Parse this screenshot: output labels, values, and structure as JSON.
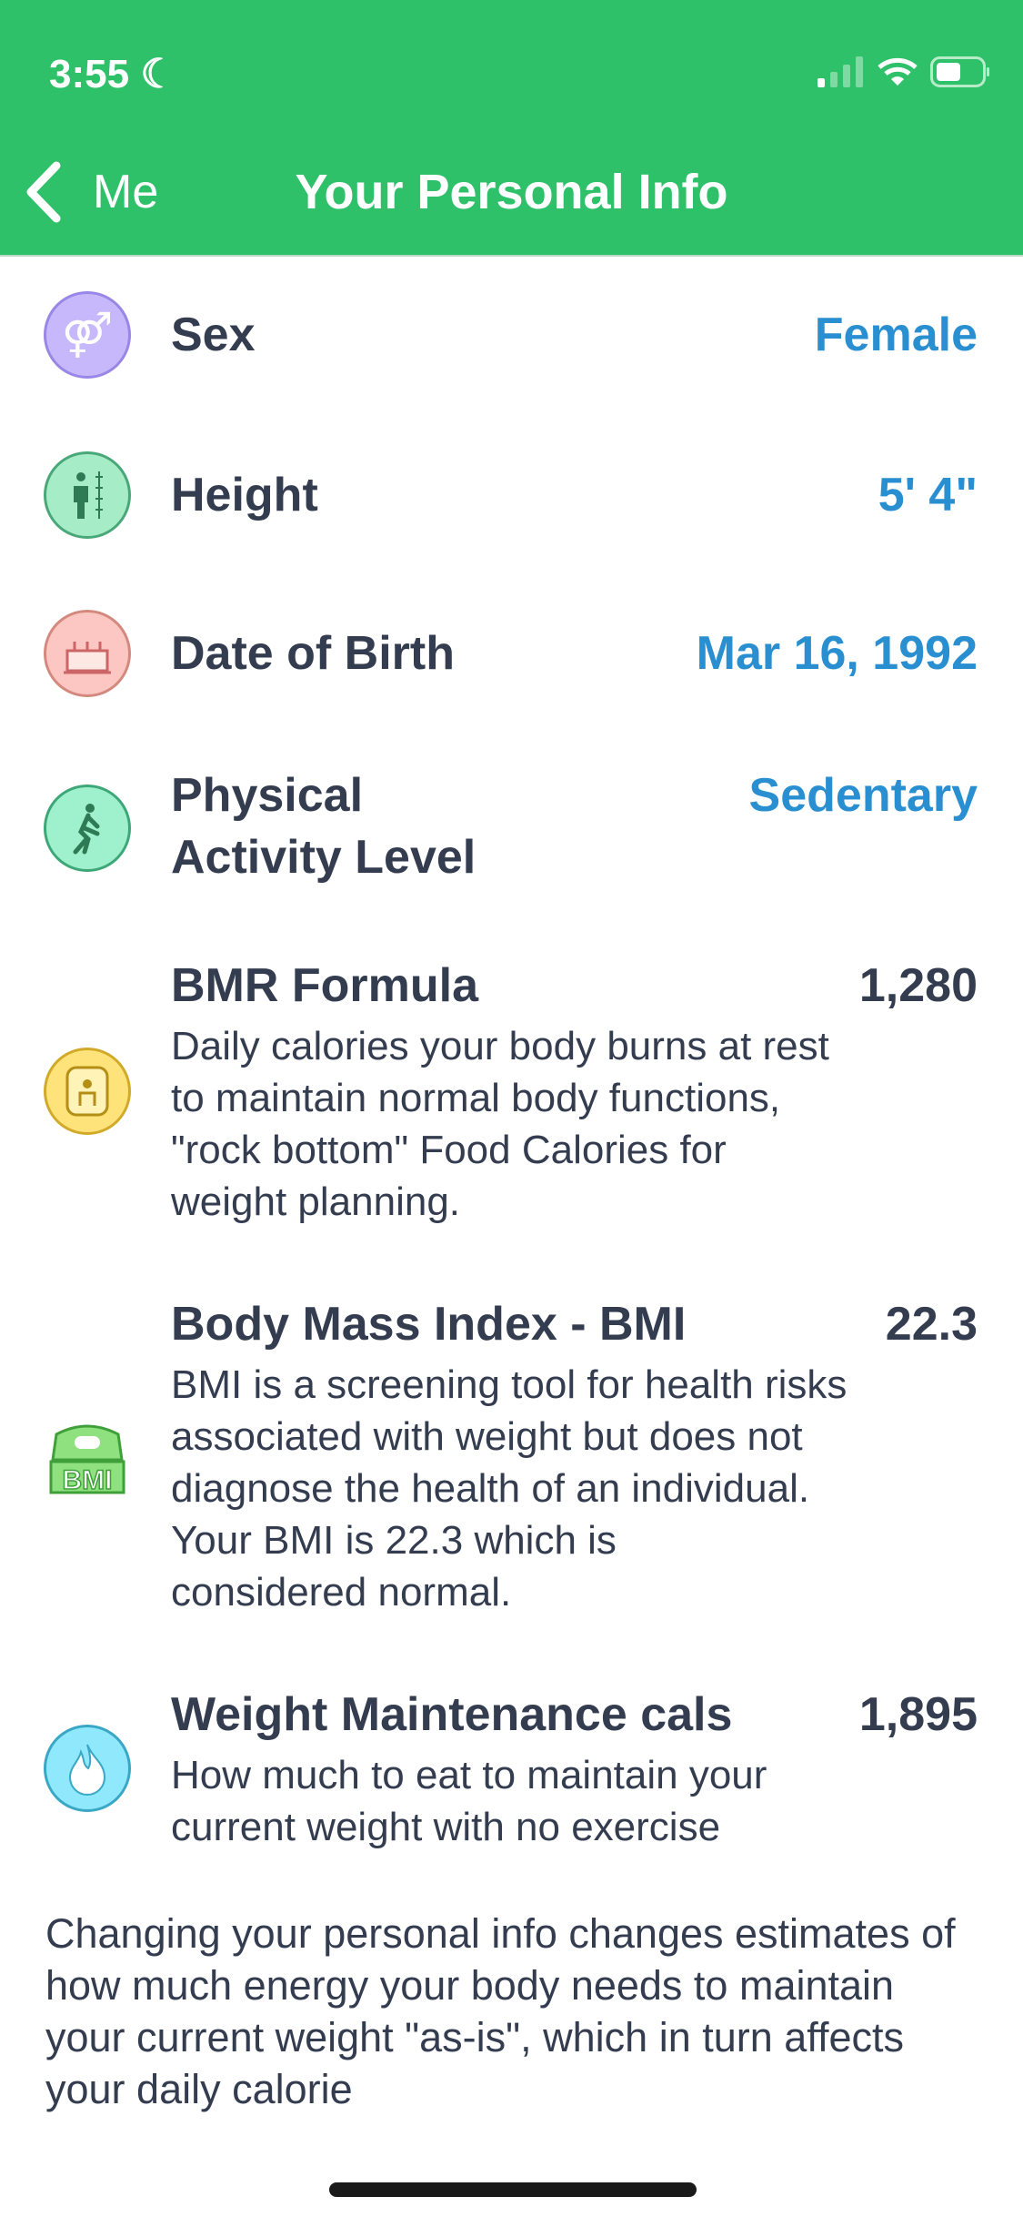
{
  "status_bar": {
    "time": "3:55"
  },
  "nav": {
    "back_label": "Me",
    "title": "Your Personal Info"
  },
  "colors": {
    "header": "#2ec16a",
    "value_blue": "#2a8fd0",
    "text": "#343c4f"
  },
  "rows": [
    {
      "label": "Sex",
      "value": "Female",
      "icon": "gender-icon"
    },
    {
      "label": "Height",
      "value": "5' 4\"",
      "icon": "height-icon"
    },
    {
      "label": "Date of Birth",
      "value": "Mar 16, 1992",
      "icon": "birthday-cake-icon"
    },
    {
      "label": "Physical Activity Level",
      "value": "Sedentary",
      "icon": "walking-person-icon"
    }
  ],
  "stats": [
    {
      "label": "BMR Formula",
      "value": "1,280",
      "description": "Daily calories your body burns at rest to maintain normal body functions, \"rock bottom\" Food Calories for weight planning.",
      "icon": "bmr-icon"
    },
    {
      "label": "Body Mass Index - BMI",
      "value": "22.3",
      "description": "BMI is a screening tool for health risks associated with weight but does not diagnose the health of an individual.",
      "description2": "Your BMI is 22.3 which is considered normal.",
      "icon": "bmi-scale-icon",
      "icon_text": "BMI"
    },
    {
      "label": "Weight Maintenance cals",
      "value": "1,895",
      "description": "How much to eat to maintain your current weight with no exercise",
      "icon": "flame-icon"
    }
  ],
  "footer": "Changing your personal info changes estimates of how much energy your body needs to maintain your current weight \"as-is\", which in turn affects your daily calorie"
}
